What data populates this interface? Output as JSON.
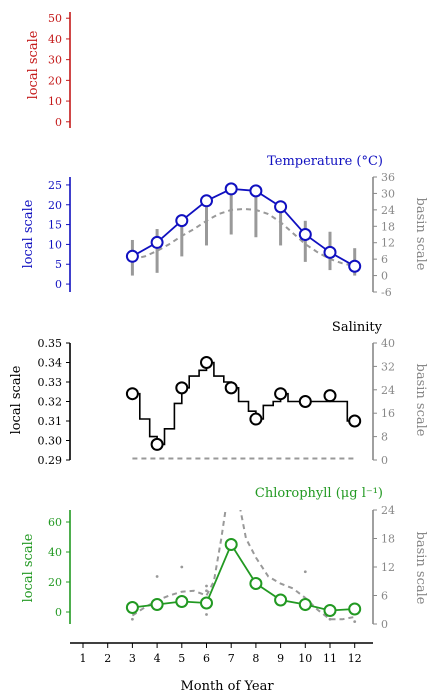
{
  "colors": {
    "temperature": "#1010c0",
    "salinity": "#000000",
    "chlorophyll": "#229922",
    "top_axis": "#c41a1a",
    "basin": "#888888"
  },
  "chart_data": [
    {
      "type": "line",
      "panel": "top",
      "ylabel": "local scale",
      "yticks": [
        "50",
        "40",
        "30",
        "20",
        "10",
        "0"
      ],
      "ylim": [
        -3,
        53
      ],
      "series": []
    },
    {
      "type": "line",
      "title": "Temperature (°C)",
      "ylabel": "local scale",
      "ylabel_right": "basin scale",
      "x": [
        3,
        4,
        5,
        6,
        7,
        8,
        9,
        10,
        11,
        12
      ],
      "local_ylim": [
        -2,
        27
      ],
      "local_yticks": [
        "25",
        "20",
        "15",
        "10",
        "5",
        "0"
      ],
      "basin_ylim": [
        -6,
        36
      ],
      "basin_yticks": [
        "36",
        "30",
        "24",
        "18",
        "12",
        "6",
        "0",
        "-6"
      ],
      "series": [
        {
          "values": [
            7,
            10.5,
            16,
            21,
            24,
            23.5,
            19.5,
            12.5,
            8,
            4.5
          ]
        },
        {
          "axis": "basin",
          "style": "dashed",
          "x": [
            3,
            3.5,
            4,
            4.5,
            5,
            5.5,
            6,
            6.5,
            7,
            7.5,
            8,
            8.5,
            9,
            9.5,
            10,
            10.5,
            11,
            11.5,
            12
          ],
          "values": [
            6,
            7,
            9,
            11.5,
            14.5,
            17,
            20,
            22.5,
            24,
            24.3,
            24,
            22.5,
            19.5,
            15.5,
            11.5,
            8.5,
            6,
            4.5,
            3.5
          ]
        },
        {
          "axis": "basin",
          "style": "range",
          "x": [
            3,
            4,
            5,
            6,
            7,
            8,
            9,
            10,
            11,
            12
          ],
          "low": [
            0,
            1,
            7,
            11,
            15,
            14,
            11,
            5,
            2,
            0
          ],
          "high": [
            13,
            17,
            21,
            25,
            30,
            30,
            27,
            20,
            16,
            10
          ]
        }
      ]
    },
    {
      "type": "line",
      "title": "Salinity",
      "ylabel": "local scale",
      "ylabel_right": "basin scale",
      "x": [
        3,
        4,
        5,
        6,
        7,
        8,
        9,
        10,
        11,
        12
      ],
      "local_ylim": [
        0.29,
        0.35
      ],
      "local_yticks": [
        "0.35",
        "0.34",
        "0.33",
        "0.32",
        "0.31",
        "0.30",
        "0.29"
      ],
      "basin_ylim": [
        0,
        40
      ],
      "basin_yticks": [
        "40",
        "32",
        "24",
        "16",
        "8",
        "0"
      ],
      "series": [
        {
          "values": [
            0.324,
            0.298,
            0.327,
            0.34,
            0.327,
            0.311,
            0.324,
            0.32,
            0.323,
            0.31
          ]
        },
        {
          "style": "step",
          "x": [
            3,
            3.3,
            3.7,
            4,
            4.3,
            4.7,
            5,
            5.3,
            5.7,
            6,
            6.3,
            6.7,
            7,
            7.3,
            7.7,
            8,
            8.3,
            8.7,
            9,
            9.3,
            9.7,
            10,
            10.3,
            10.7,
            11,
            11.3,
            11.7,
            12
          ],
          "values": [
            0.324,
            0.311,
            0.302,
            0.298,
            0.306,
            0.319,
            0.327,
            0.333,
            0.336,
            0.34,
            0.333,
            0.33,
            0.327,
            0.32,
            0.315,
            0.311,
            0.318,
            0.32,
            0.324,
            0.32,
            0.32,
            0.32,
            0.32,
            0.32,
            0.32,
            0.32,
            0.31,
            0.31
          ]
        },
        {
          "axis": "basin",
          "style": "dashed",
          "x": [
            3,
            12
          ],
          "values": [
            0.5,
            0.5
          ]
        }
      ]
    },
    {
      "type": "line",
      "title": "Chlorophyll (μg l⁻¹)",
      "ylabel": "local scale",
      "ylabel_right": "basin scale",
      "x": [
        3,
        4,
        5,
        6,
        7,
        8,
        9,
        10,
        11,
        12
      ],
      "local_ylim": [
        -8,
        68
      ],
      "local_yticks": [
        "60",
        "40",
        "20",
        "0"
      ],
      "basin_ylim": [
        0,
        24
      ],
      "basin_yticks": [
        "24",
        "18",
        "12",
        "6",
        "0"
      ],
      "series": [
        {
          "values": [
            3,
            5,
            7,
            6,
            45,
            19,
            8,
            5,
            1,
            2
          ]
        },
        {
          "axis": "basin",
          "style": "dashed",
          "x": [
            3,
            3.5,
            4,
            4.5,
            5,
            5.5,
            6,
            6.3,
            6.6,
            7,
            7.3,
            7.6,
            8,
            8.5,
            9,
            9.5,
            10,
            10.5,
            11,
            11.5,
            12
          ],
          "values": [
            1.8,
            3.5,
            5,
            6,
            6.8,
            7,
            6,
            9,
            18,
            32,
            26,
            18,
            14,
            10,
            8.5,
            7.5,
            5.5,
            3,
            1,
            1,
            1.5
          ]
        },
        {
          "axis": "basin",
          "style": "points",
          "x": [
            3,
            4,
            5,
            6,
            6,
            6,
            9,
            10,
            10,
            11,
            12
          ],
          "values": [
            1,
            10,
            12,
            8,
            7,
            2,
            6,
            11,
            3,
            1,
            0.5
          ]
        }
      ]
    }
  ],
  "x_axis": {
    "label": "Month of Year",
    "ticks": [
      "1",
      "2",
      "3",
      "4",
      "5",
      "6",
      "7",
      "8",
      "9",
      "10",
      "11",
      "12"
    ]
  }
}
